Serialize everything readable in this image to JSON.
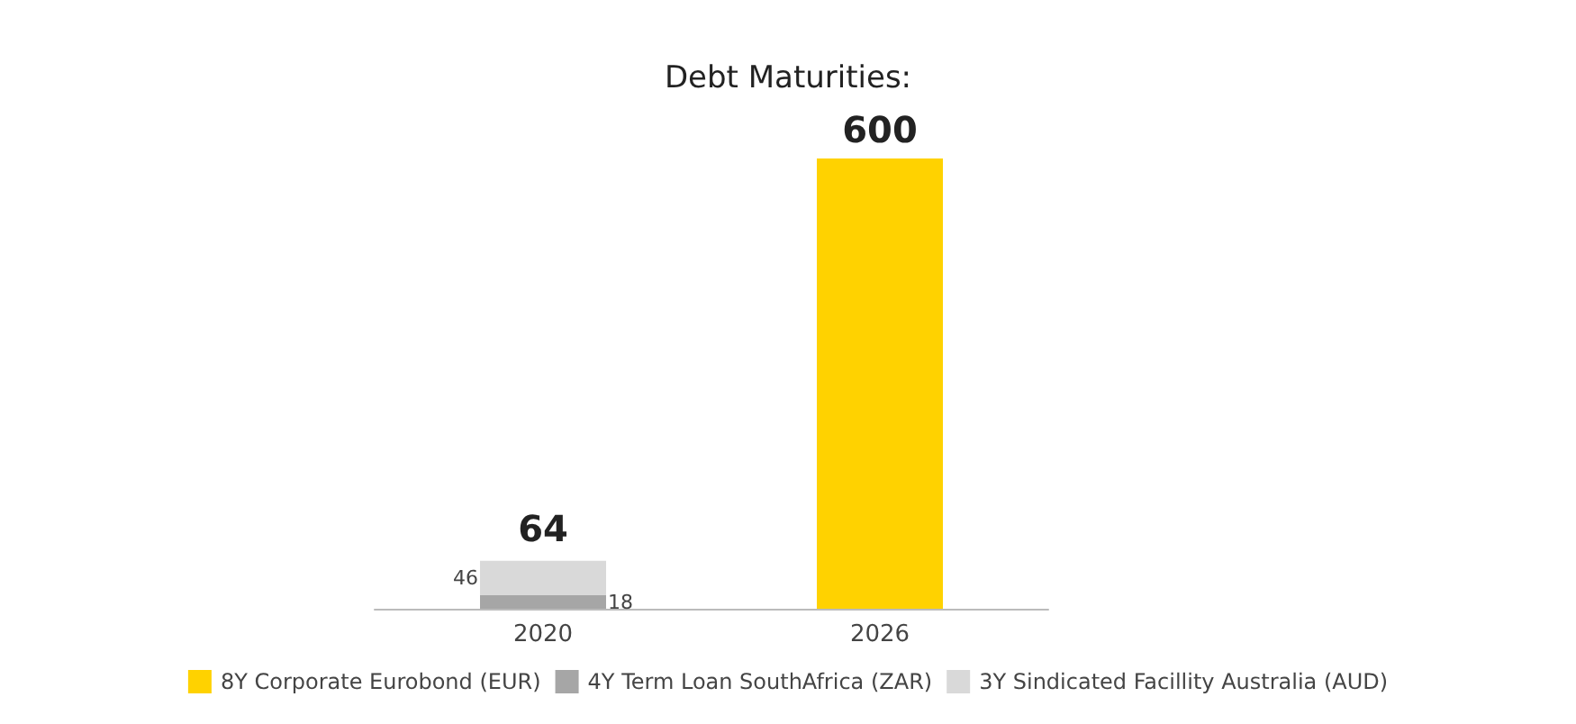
{
  "chart_data": {
    "type": "bar",
    "title": "Debt Maturities:",
    "categories": [
      "2020",
      "2026"
    ],
    "stacked": true,
    "legend": "bottom",
    "series": [
      {
        "name": "4Y Term Loan SouthAfrica (ZAR)",
        "color": "#a6a6a6",
        "values": [
          18,
          null
        ],
        "value_labels": [
          "18",
          null
        ]
      },
      {
        "name": "3Y Sindicated Facillity Australia (AUD)",
        "color": "#d9d9d9",
        "values": [
          46,
          null
        ],
        "value_labels": [
          "46",
          null
        ]
      },
      {
        "name": "8Y Corporate Eurobond (EUR)",
        "color": "#ffd200",
        "values": [
          null,
          600
        ],
        "value_labels": [
          null,
          "600"
        ]
      }
    ],
    "totals": [
      "64",
      null
    ]
  }
}
